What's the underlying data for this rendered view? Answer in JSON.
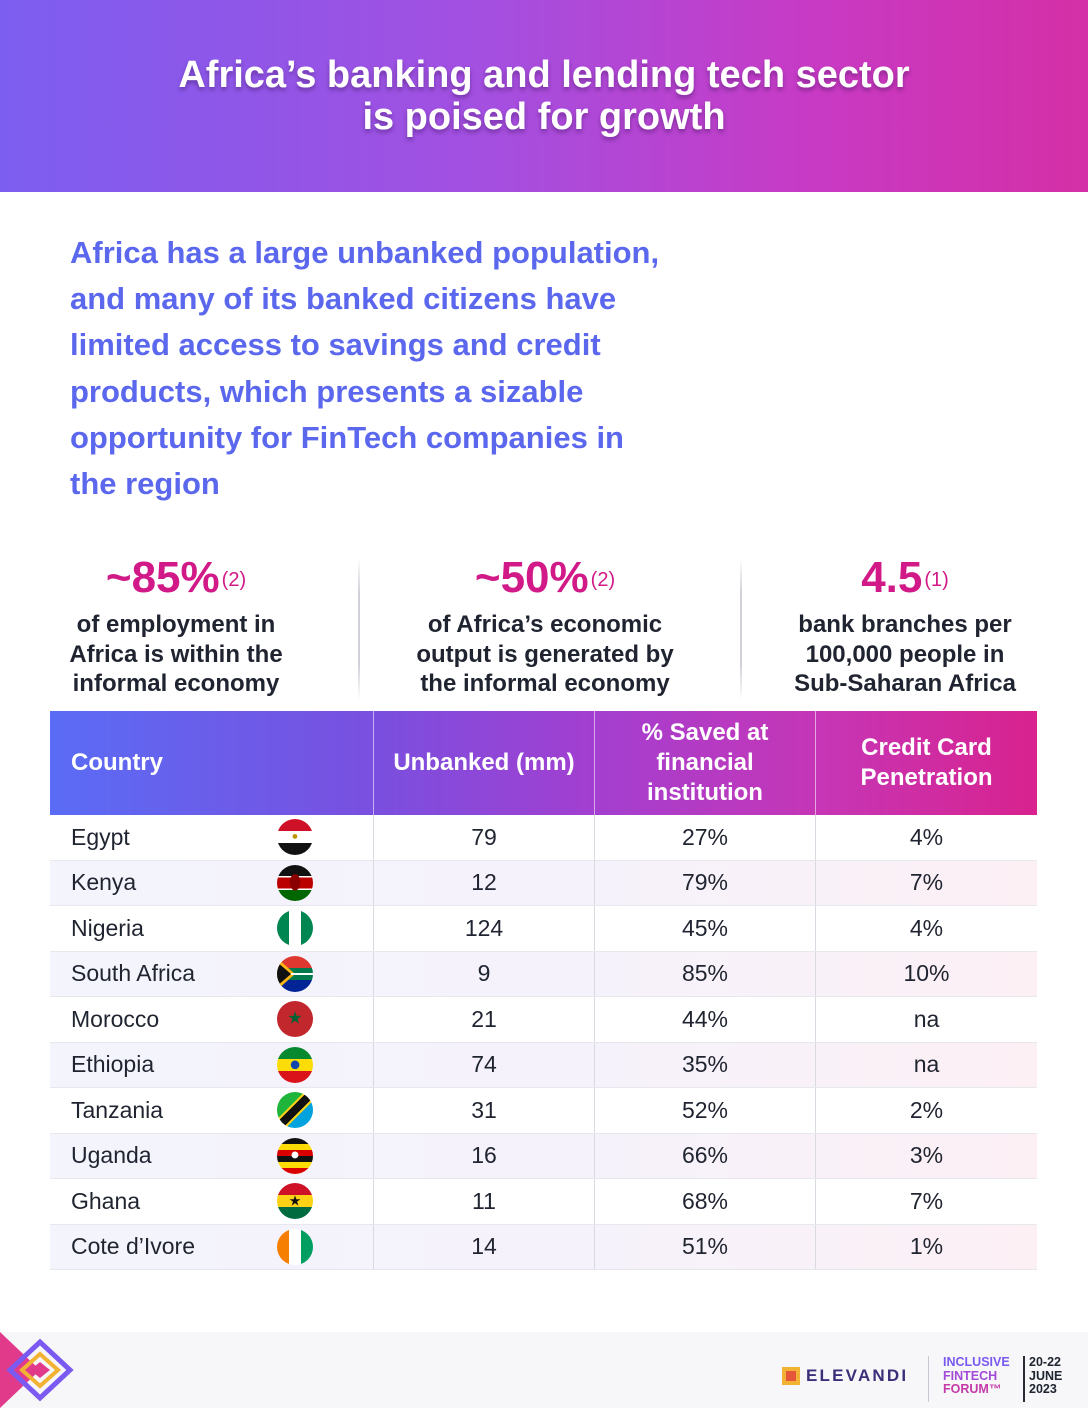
{
  "header": {
    "title_line1": "Africa’s banking and lending tech sector",
    "title_line2": "is poised for growth"
  },
  "intro": {
    "lines": [
      "Africa has a large unbanked population,",
      "and many of its banked citizens have",
      "limited access to savings and credit",
      "products, which presents a sizable",
      "opportunity for FinTech companies in",
      "the region"
    ]
  },
  "stats": [
    {
      "value": "~85%",
      "ref": "(2)",
      "lines": [
        "of employment in",
        "Africa is within the",
        "informal economy"
      ]
    },
    {
      "value": "~50%",
      "ref": "(2)",
      "lines": [
        "of Africa’s economic",
        "output is generated by",
        "the informal economy"
      ]
    },
    {
      "value": "4.5",
      "ref": "(1)",
      "lines": [
        "bank branches per",
        "100,000 people in",
        "Sub-Saharan Africa"
      ]
    }
  ],
  "table": {
    "headers": {
      "country": "Country",
      "unbanked": "Unbanked (mm)",
      "saved_l1": "% Saved at",
      "saved_l2": "financial",
      "saved_l3": "institution",
      "credit_l1": "Credit Card",
      "credit_l2": "Penetration"
    },
    "rows": [
      {
        "country": "Egypt",
        "flag": "egypt-flag-icon",
        "unbanked": "79",
        "saved": "27%",
        "credit": "4%"
      },
      {
        "country": "Kenya",
        "flag": "kenya-flag-icon",
        "unbanked": "12",
        "saved": "79%",
        "credit": "7%"
      },
      {
        "country": "Nigeria",
        "flag": "nigeria-flag-icon",
        "unbanked": "124",
        "saved": "45%",
        "credit": "4%"
      },
      {
        "country": "South Africa",
        "flag": "south-africa-flag-icon",
        "unbanked": "9",
        "saved": "85%",
        "credit": "10%"
      },
      {
        "country": "Morocco",
        "flag": "morocco-flag-icon",
        "unbanked": "21",
        "saved": "44%",
        "credit": "na"
      },
      {
        "country": "Ethiopia",
        "flag": "ethiopia-flag-icon",
        "unbanked": "74",
        "saved": "35%",
        "credit": "na"
      },
      {
        "country": "Tanzania",
        "flag": "tanzania-flag-icon",
        "unbanked": "31",
        "saved": "52%",
        "credit": "2%"
      },
      {
        "country": "Uganda",
        "flag": "uganda-flag-icon",
        "unbanked": "16",
        "saved": "66%",
        "credit": "3%"
      },
      {
        "country": "Ghana",
        "flag": "ghana-flag-icon",
        "unbanked": "11",
        "saved": "68%",
        "credit": "7%"
      },
      {
        "country": "Cote d’Ivore",
        "flag": "cote-divoire-flag-icon",
        "unbanked": "14",
        "saved": "51%",
        "credit": "1%"
      }
    ]
  },
  "footer": {
    "elevandi": "ELEVANDI",
    "forum_l1": "INCLUSIVE",
    "forum_l2": "FINTECH",
    "forum_l3": "FORUM™",
    "date_l1": "20-22",
    "date_l2": "JUNE",
    "date_l3": "2023"
  },
  "colors": {
    "accent_blue": "#5b68ee",
    "accent_magenta": "#d11a87"
  }
}
